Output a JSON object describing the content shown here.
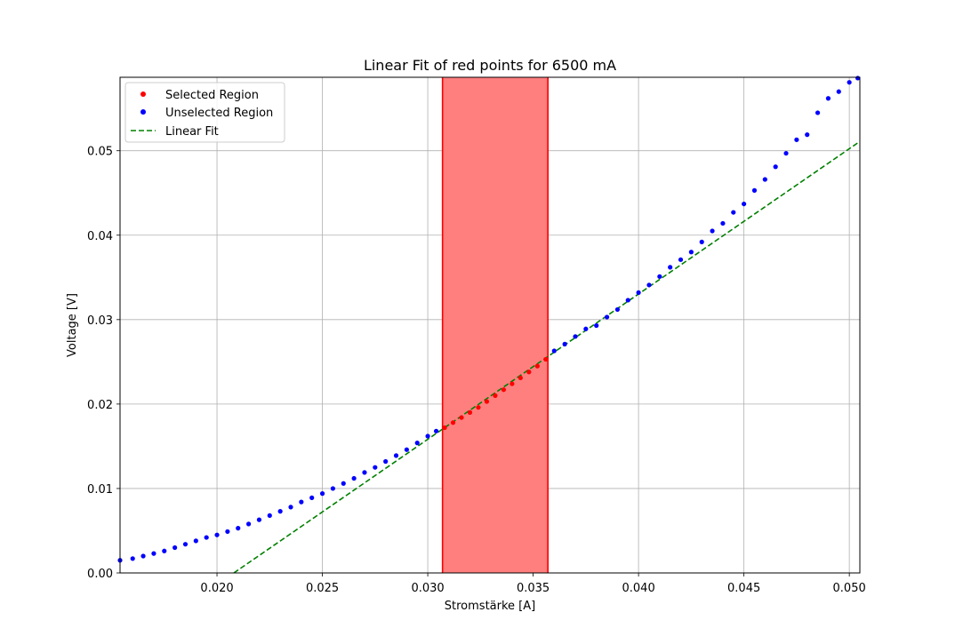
{
  "chart_data": {
    "type": "scatter",
    "title": "Linear Fit of red points for 6500 mA",
    "xlabel": "Stromstärke [A]",
    "ylabel": "Voltage [V]",
    "xlim": [
      0.0154,
      0.0505
    ],
    "ylim": [
      0.0,
      0.0587
    ],
    "grid": true,
    "x_ticks": [
      "0.020",
      "0.025",
      "0.030",
      "0.035",
      "0.040",
      "0.045",
      "0.050"
    ],
    "y_ticks": [
      "0.00",
      "0.01",
      "0.02",
      "0.03",
      "0.04",
      "0.05"
    ],
    "legend_position": "top-left",
    "legend": [
      {
        "label": "Selected Region",
        "marker": "dot",
        "color": "#ff0000"
      },
      {
        "label": "Unselected Region",
        "marker": "dot",
        "color": "#0000ff"
      },
      {
        "label": "Linear Fit",
        "marker": "dashed-line",
        "color": "#008000"
      }
    ],
    "selected_region": {
      "x_start": 0.0307,
      "x_end": 0.0357,
      "fill_color": "#ff7f7f",
      "edge_color": "#ff0000"
    },
    "series": [
      {
        "name": "Unselected Region",
        "color": "#0000ff",
        "points": [
          [
            0.0154,
            0.0015
          ],
          [
            0.016,
            0.0017
          ],
          [
            0.0165,
            0.002
          ],
          [
            0.017,
            0.0023
          ],
          [
            0.0175,
            0.0026
          ],
          [
            0.018,
            0.003
          ],
          [
            0.0185,
            0.0034
          ],
          [
            0.019,
            0.0038
          ],
          [
            0.0195,
            0.0042
          ],
          [
            0.02,
            0.0045
          ],
          [
            0.0205,
            0.0049
          ],
          [
            0.021,
            0.0053
          ],
          [
            0.0215,
            0.0058
          ],
          [
            0.022,
            0.0063
          ],
          [
            0.0225,
            0.0068
          ],
          [
            0.023,
            0.0073
          ],
          [
            0.0235,
            0.0078
          ],
          [
            0.024,
            0.0084
          ],
          [
            0.0245,
            0.0089
          ],
          [
            0.025,
            0.0094
          ],
          [
            0.0255,
            0.01
          ],
          [
            0.026,
            0.0106
          ],
          [
            0.0265,
            0.0112
          ],
          [
            0.027,
            0.0119
          ],
          [
            0.0275,
            0.0125
          ],
          [
            0.028,
            0.0132
          ],
          [
            0.0285,
            0.0139
          ],
          [
            0.029,
            0.0146
          ],
          [
            0.0295,
            0.0154
          ],
          [
            0.03,
            0.0162
          ],
          [
            0.0304,
            0.0168
          ],
          [
            0.036,
            0.0263
          ],
          [
            0.0365,
            0.0271
          ],
          [
            0.037,
            0.028
          ],
          [
            0.0375,
            0.0289
          ],
          [
            0.038,
            0.0293
          ],
          [
            0.0385,
            0.0303
          ],
          [
            0.039,
            0.0312
          ],
          [
            0.0395,
            0.0323
          ],
          [
            0.04,
            0.0332
          ],
          [
            0.0405,
            0.0341
          ],
          [
            0.041,
            0.0351
          ],
          [
            0.0415,
            0.0362
          ],
          [
            0.042,
            0.0371
          ],
          [
            0.0425,
            0.038
          ],
          [
            0.043,
            0.0392
          ],
          [
            0.0435,
            0.0405
          ],
          [
            0.044,
            0.0414
          ],
          [
            0.0445,
            0.0427
          ],
          [
            0.045,
            0.0437
          ],
          [
            0.0455,
            0.0453
          ],
          [
            0.046,
            0.0466
          ],
          [
            0.0465,
            0.0481
          ],
          [
            0.047,
            0.0497
          ],
          [
            0.0475,
            0.0513
          ],
          [
            0.048,
            0.0519
          ],
          [
            0.0485,
            0.0545
          ],
          [
            0.049,
            0.0562
          ],
          [
            0.0495,
            0.057
          ],
          [
            0.05,
            0.0581
          ],
          [
            0.0504,
            0.0586
          ]
        ]
      },
      {
        "name": "Selected Region",
        "color": "#ff0000",
        "points": [
          [
            0.0308,
            0.0172
          ],
          [
            0.0312,
            0.0178
          ],
          [
            0.0316,
            0.0184
          ],
          [
            0.032,
            0.019
          ],
          [
            0.0324,
            0.0196
          ],
          [
            0.0328,
            0.0203
          ],
          [
            0.0332,
            0.021
          ],
          [
            0.0336,
            0.0217
          ],
          [
            0.034,
            0.0224
          ],
          [
            0.0344,
            0.0231
          ],
          [
            0.0348,
            0.0238
          ],
          [
            0.0352,
            0.0245
          ],
          [
            0.0356,
            0.0253
          ]
        ]
      }
    ],
    "fit_line": {
      "name": "Linear Fit",
      "color": "#008000",
      "points": [
        [
          0.0208,
          0.0
        ],
        [
          0.0505,
          0.0511
        ]
      ]
    }
  }
}
